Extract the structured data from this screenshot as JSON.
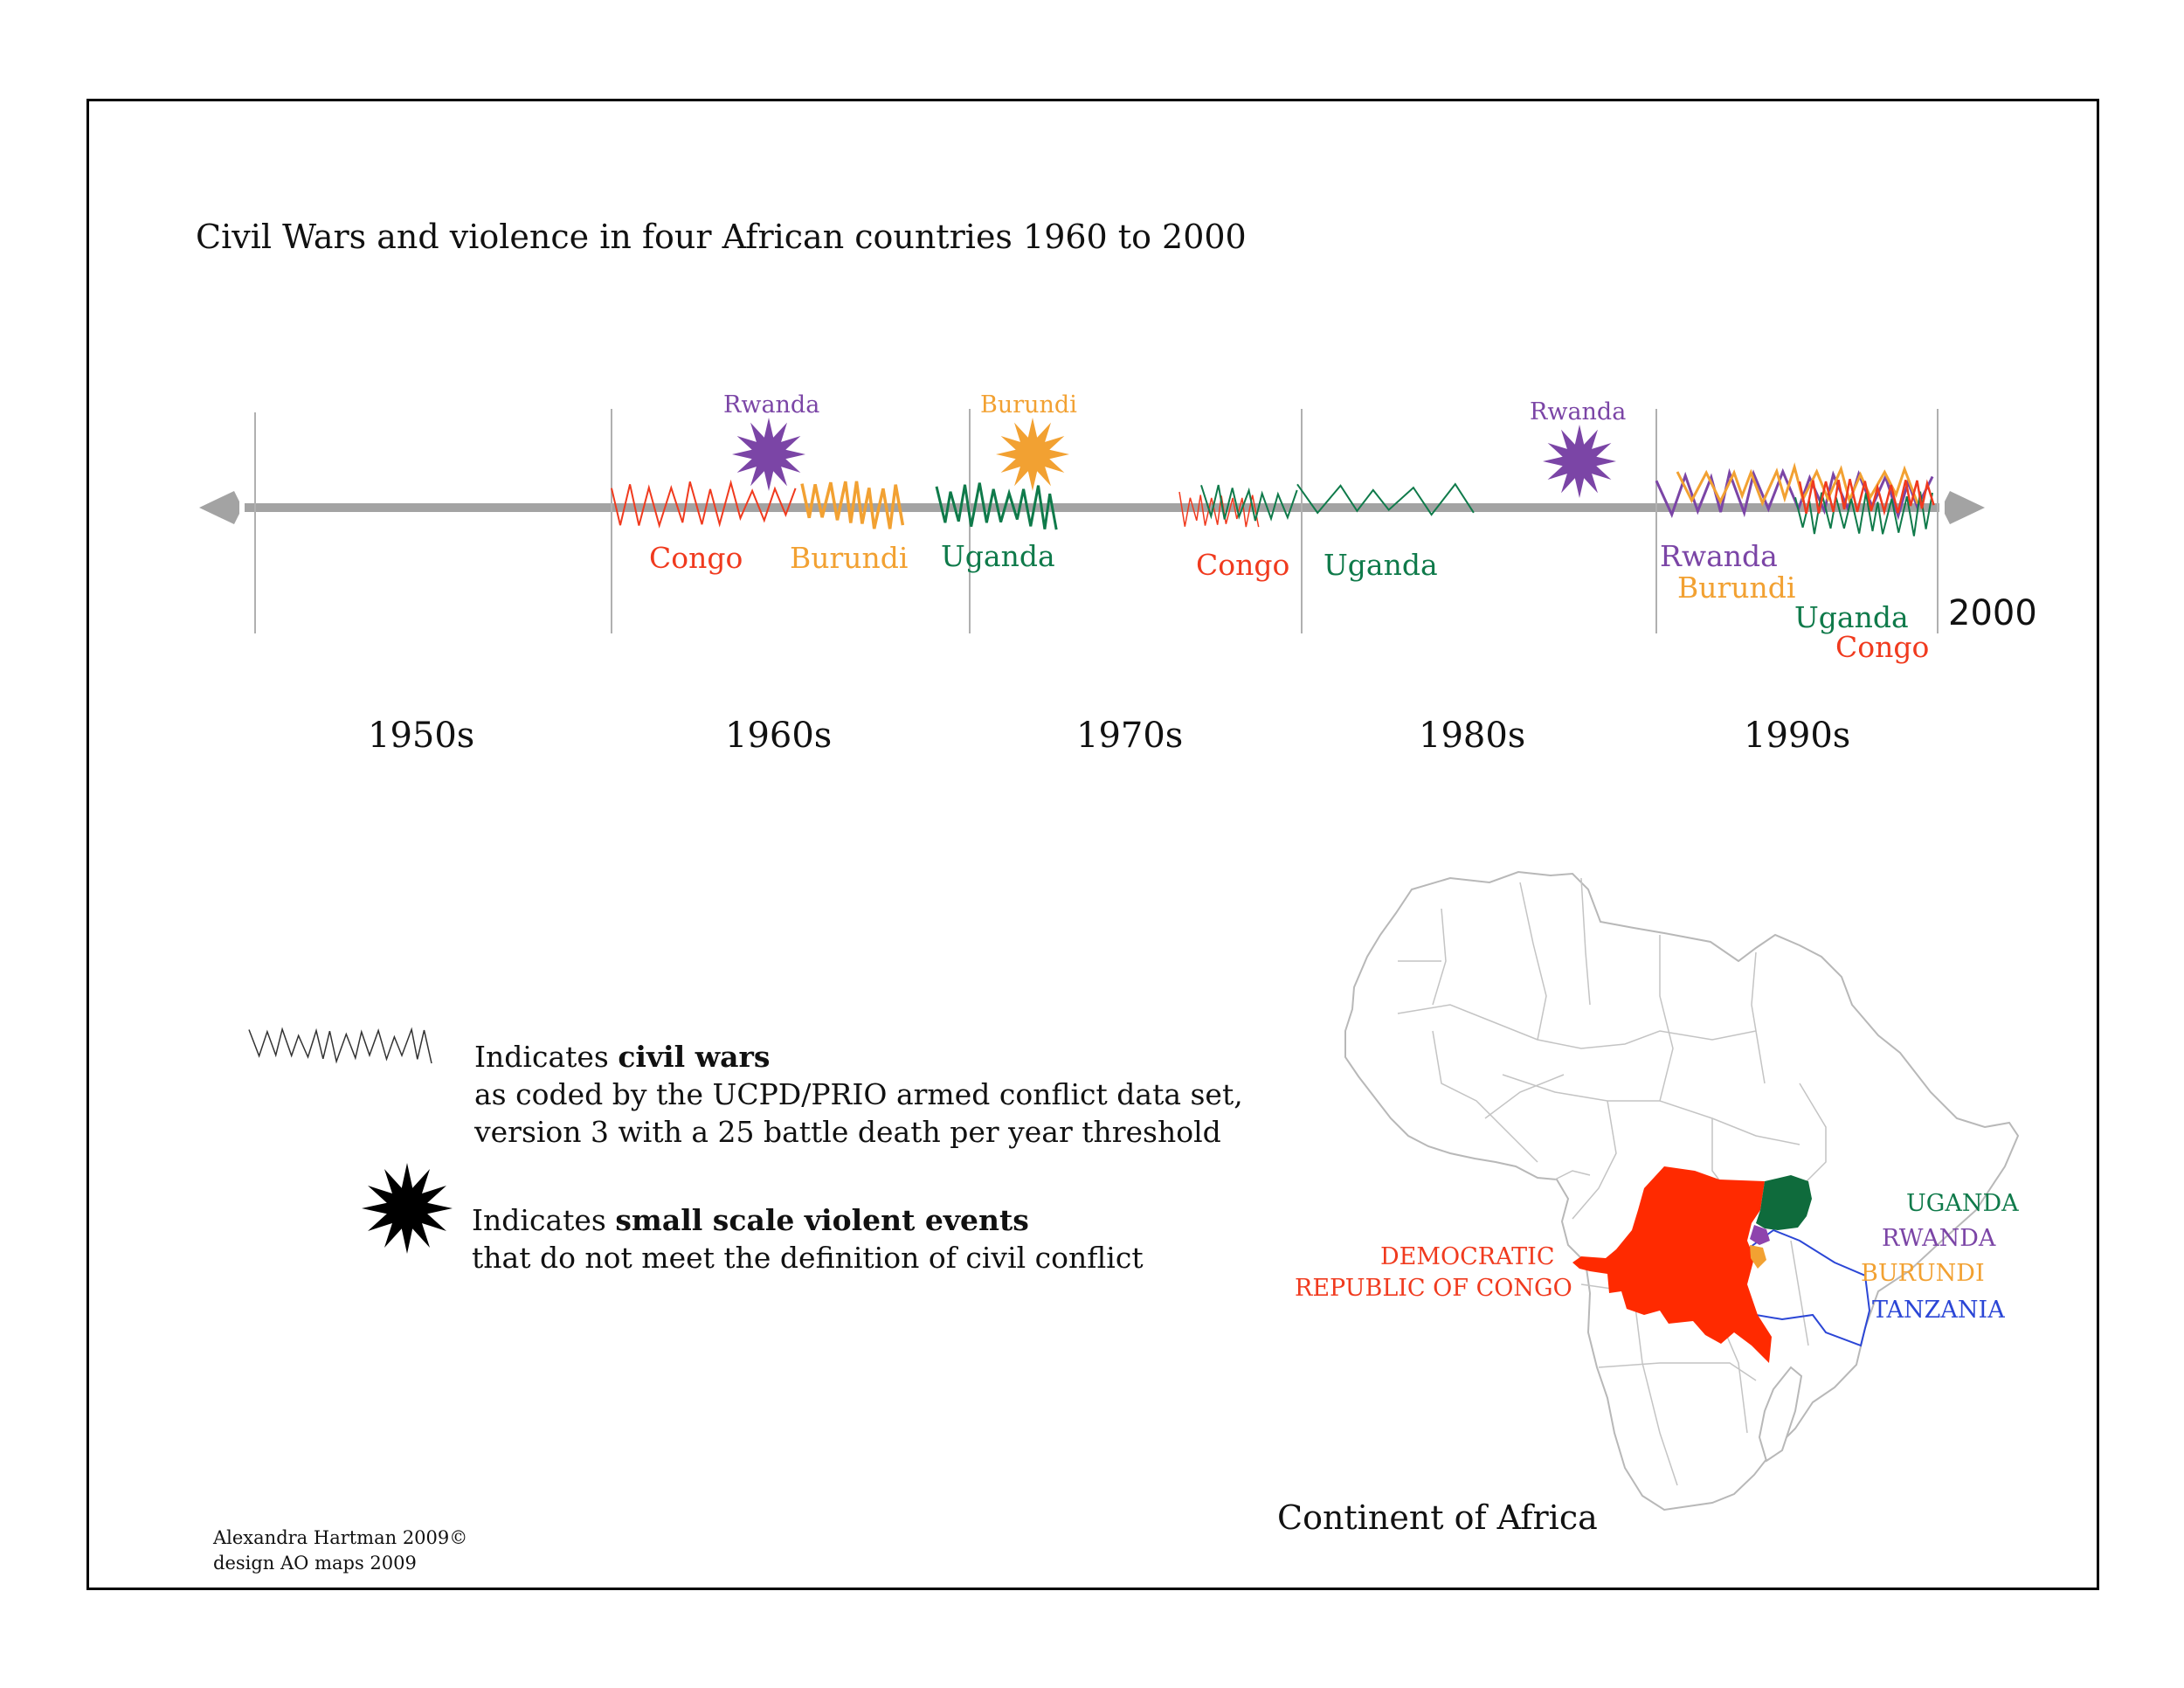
{
  "title": "Civil Wars and violence in four African countries 1960 to 2000",
  "colors": {
    "congo": "#f03a1e",
    "burundi": "#f2a132",
    "uganda": "#0f7a4a",
    "rwanda": "#7b45a6",
    "tanzania": "#2b46d6",
    "timeline": "#a3a3a3"
  },
  "timeline": {
    "decades": [
      "1950s",
      "1960s",
      "1970s",
      "1980s",
      "1990s"
    ],
    "end_label": "2000",
    "civil_war_labels": [
      {
        "country": "Congo",
        "color": "congo"
      },
      {
        "country": "Burundi",
        "color": "burundi"
      },
      {
        "country": "Uganda",
        "color": "uganda"
      },
      {
        "country": "Congo",
        "color": "congo"
      },
      {
        "country": "Uganda",
        "color": "uganda"
      }
    ],
    "event_labels": [
      {
        "country": "Rwanda",
        "color": "rwanda"
      },
      {
        "country": "Burundi",
        "color": "burundi"
      },
      {
        "country": "Rwanda",
        "color": "rwanda"
      }
    ],
    "nineties_labels": [
      {
        "country": "Rwanda",
        "color": "rwanda"
      },
      {
        "country": "Burundi",
        "color": "burundi"
      },
      {
        "country": "Uganda",
        "color": "uganda"
      },
      {
        "country": "Congo",
        "color": "congo"
      }
    ]
  },
  "legend": {
    "civil_wars": {
      "prefix": "Indicates ",
      "bold": "civil wars",
      "line2": "as coded by the UCPD/PRIO armed conflict data set,",
      "line3": "version 3 with a 25 battle death per year threshold"
    },
    "events": {
      "prefix": "Indicates ",
      "bold": "small scale violent events",
      "line2": "that do not meet the definition of civil conflict"
    }
  },
  "map": {
    "caption": "Continent of Africa",
    "drc_label_line1": "DEMOCRATIC",
    "drc_label_line2": "REPUBLIC OF CONGO",
    "uganda_label": "UGANDA",
    "rwanda_label": "RWANDA",
    "burundi_label": "BURUNDI",
    "tanzania_label": "TANZANIA"
  },
  "credits": {
    "line1": "Alexandra Hartman 2009©",
    "line2": "design AO maps 2009"
  }
}
